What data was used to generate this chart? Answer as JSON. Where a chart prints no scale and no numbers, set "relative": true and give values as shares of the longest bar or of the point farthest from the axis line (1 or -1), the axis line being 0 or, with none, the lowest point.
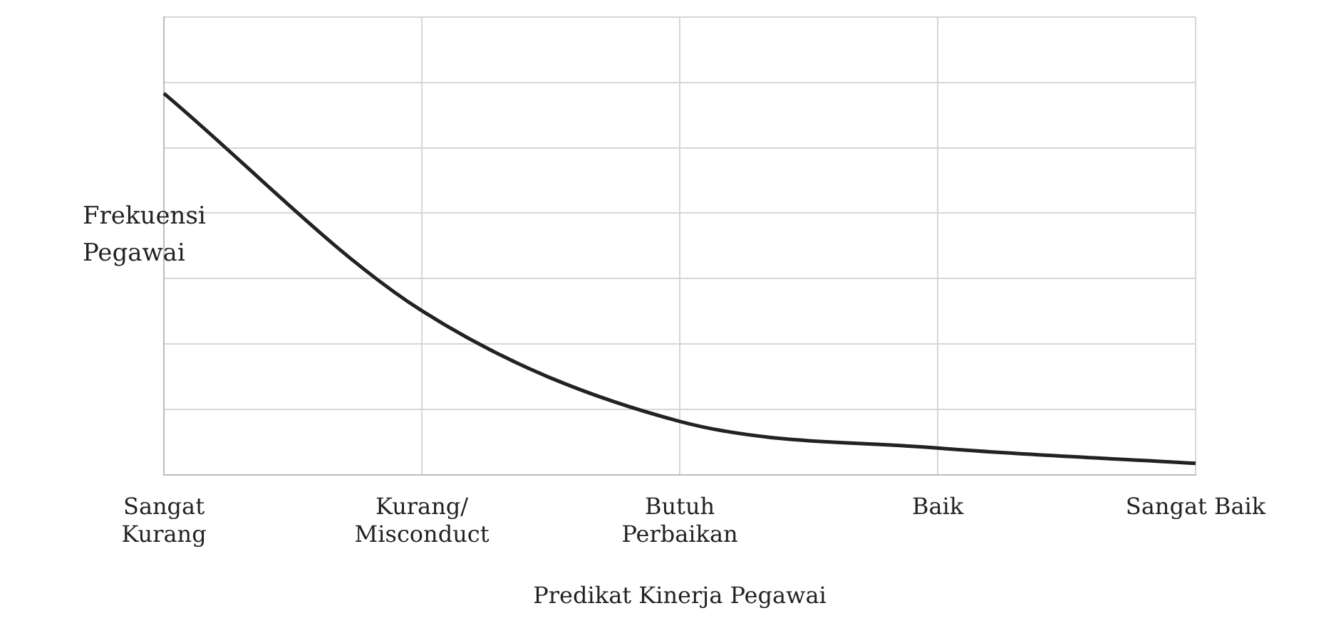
{
  "chart_data": {
    "type": "line",
    "relative": true,
    "xlabel": "Predikat Kinerja Pegawai",
    "ylabel": "Frekuensi\nPegawai",
    "categories": [
      "Sangat\nKurang",
      "Kurang/\nMisconduct",
      "Butuh\nPerbaikan",
      "Baik",
      "Sangat Baik"
    ],
    "series": [
      {
        "color": "#222222",
        "values": [
          1,
          0.43,
          0.14,
          0.07,
          0.03
        ]
      }
    ],
    "grid": true,
    "legend": false,
    "marker": "none",
    "line_style": "solid"
  }
}
